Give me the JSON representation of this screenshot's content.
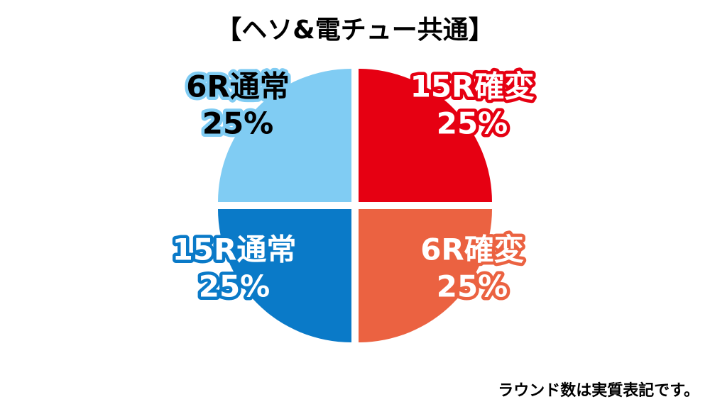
{
  "chart_data": {
    "type": "pie",
    "title": "【ヘソ&電チュー共通】",
    "categories": [
      "15R確変",
      "6R確変",
      "15R通常",
      "6R通常"
    ],
    "values": [
      25,
      25,
      25,
      25
    ],
    "value_labels": [
      "25%",
      "25%",
      "25%",
      "25%"
    ],
    "colors": [
      "#e60012",
      "#eb6241",
      "#0a7ac8",
      "#80ccf3"
    ],
    "note": "ラウンド数は実質表記です。"
  }
}
